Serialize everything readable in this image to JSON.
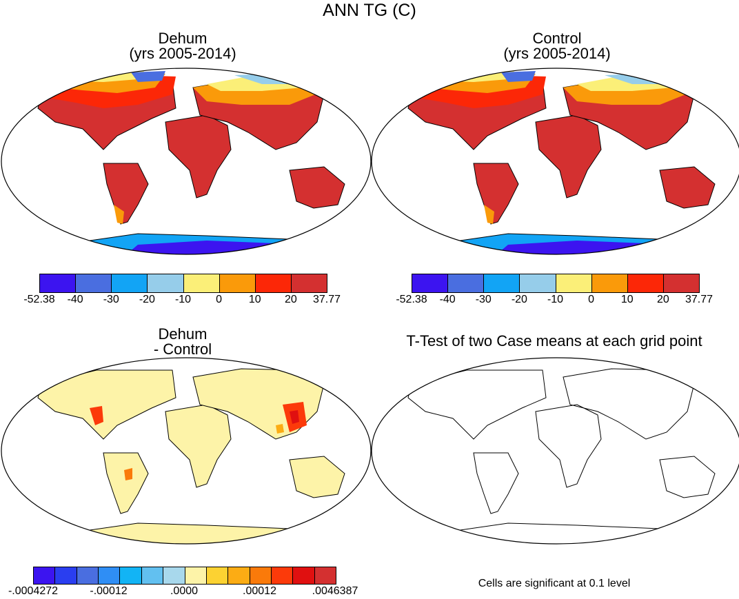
{
  "figure": {
    "title": "ANN TG (C)"
  },
  "panels": {
    "dehum": {
      "title_line1": "Dehum",
      "title_line2": "(yrs 2005-2014)"
    },
    "control": {
      "title_line1": "Control",
      "title_line2": "(yrs 2005-2014)"
    },
    "difference": {
      "title_line1": "Dehum",
      "title_line2": "- Control"
    },
    "ttest": {
      "title": "T-Test of two Case means at each grid point",
      "note": "Cells are significant at 0.1 level"
    }
  },
  "colorbars": {
    "absolute": {
      "colors": [
        "#3c14f0",
        "#4a6ee0",
        "#12a4f5",
        "#96cdea",
        "#fbef78",
        "#fa9a0a",
        "#fc2707",
        "#d43030"
      ],
      "labels": [
        "-52.38",
        "-40",
        "-30",
        "-20",
        "-10",
        "0",
        "10",
        "20",
        "37.77"
      ]
    },
    "difference": {
      "colors": [
        "#3c14f0",
        "#2a3ef0",
        "#4a6ee0",
        "#2f8ef5",
        "#12b4f5",
        "#62c0f0",
        "#a8d8ec",
        "#fdf3a8",
        "#fcd232",
        "#fcac14",
        "#fa7a0a",
        "#fc3a0a",
        "#e01010",
        "#d43030"
      ],
      "labels": [
        "-.0004272",
        "-.00012",
        ".0000",
        ".00012",
        ".0046387"
      ]
    }
  },
  "chart_data": [
    {
      "type": "heatmap",
      "title": "Dehum (yrs 2005-2014)",
      "legend": "bottom",
      "levels": [
        -52.38,
        -40,
        -30,
        -20,
        -10,
        0,
        10,
        20,
        37.77
      ]
    },
    {
      "type": "heatmap",
      "title": "Control (yrs 2005-2014)",
      "legend": "bottom",
      "levels": [
        -52.38,
        -40,
        -30,
        -20,
        -10,
        0,
        10,
        20,
        37.77
      ]
    },
    {
      "type": "heatmap",
      "title": "Dehum - Control",
      "legend": "bottom",
      "levels": [
        -0.0004272,
        -0.00012,
        0.0,
        0.00012,
        0.0046387
      ]
    },
    {
      "type": "heatmap",
      "title": "T-Test of two Case means at each grid point"
    }
  ]
}
